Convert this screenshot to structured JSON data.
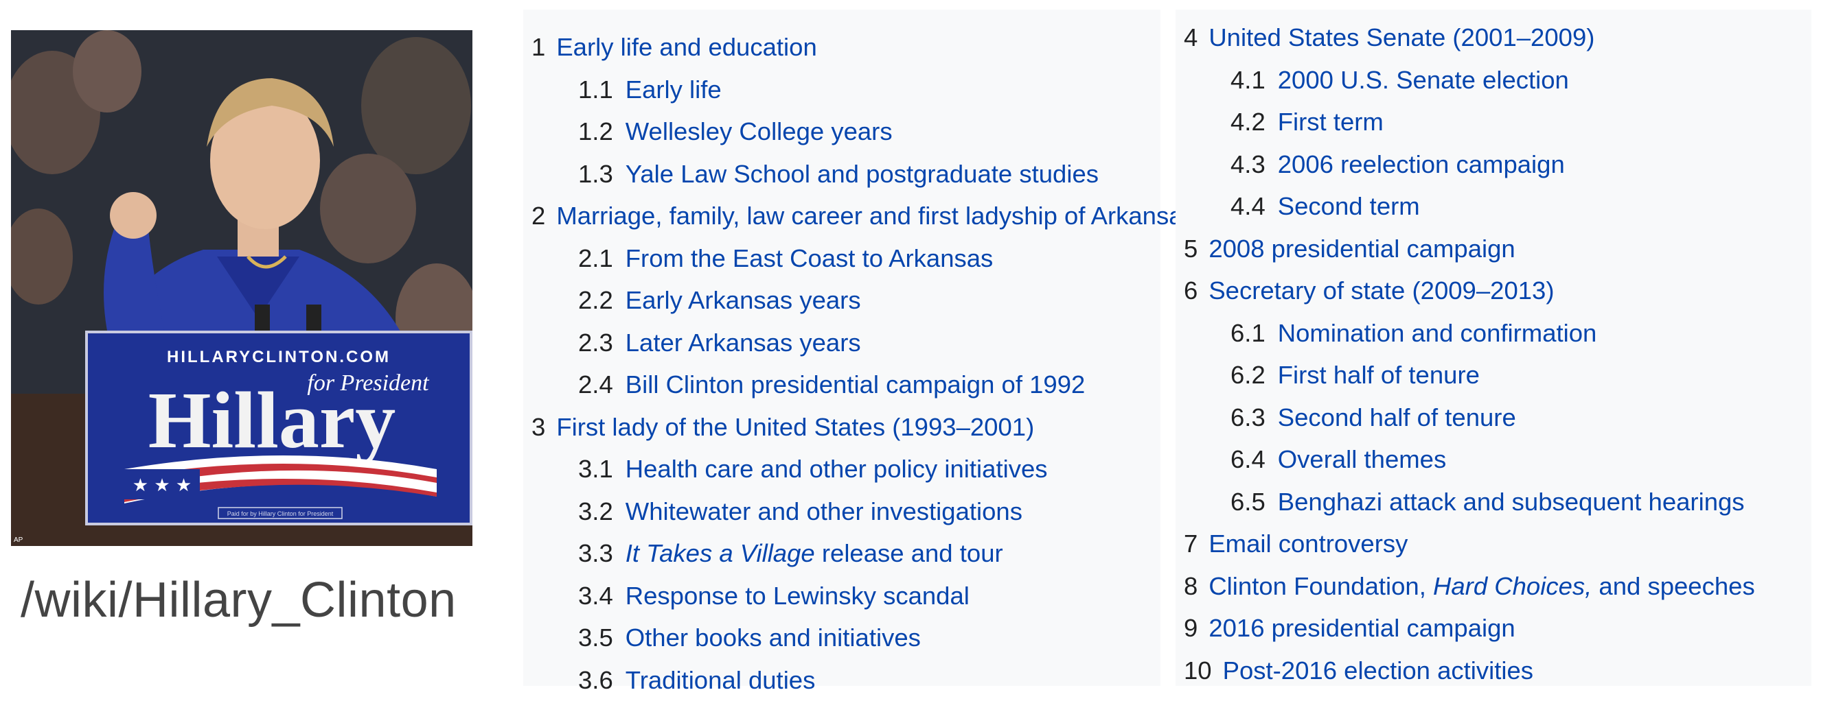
{
  "url_label": "/wiki/Hillary_Clinton",
  "photo": {
    "sign_site": "HILLARYCLINTON.COM",
    "sign_tagline": "for President",
    "sign_name": "Hillary",
    "sign_footer": "Paid for by Hillary Clinton for President",
    "credit": "AP"
  },
  "toc_left": [
    {
      "level": 1,
      "num": "1",
      "text": "Early life and education"
    },
    {
      "level": 2,
      "num": "1.1",
      "text": "Early life"
    },
    {
      "level": 2,
      "num": "1.2",
      "text": "Wellesley College years"
    },
    {
      "level": 2,
      "num": "1.3",
      "text": "Yale Law School and postgraduate studies"
    },
    {
      "level": 1,
      "num": "2",
      "text": "Marriage, family, law career and first ladyship of Arkansas"
    },
    {
      "level": 2,
      "num": "2.1",
      "text": "From the East Coast to Arkansas"
    },
    {
      "level": 2,
      "num": "2.2",
      "text": "Early Arkansas years"
    },
    {
      "level": 2,
      "num": "2.3",
      "text": "Later Arkansas years"
    },
    {
      "level": 2,
      "num": "2.4",
      "text": "Bill Clinton presidential campaign of 1992"
    },
    {
      "level": 1,
      "num": "3",
      "text": "First lady of the United States (1993–2001)"
    },
    {
      "level": 2,
      "num": "3.1",
      "text": "Health care and other policy initiatives"
    },
    {
      "level": 2,
      "num": "3.2",
      "text": "Whitewater and other investigations"
    },
    {
      "level": 2,
      "num": "3.3",
      "text_italic": "It Takes a Village",
      "text_after": " release and tour"
    },
    {
      "level": 2,
      "num": "3.4",
      "text": "Response to Lewinsky scandal"
    },
    {
      "level": 2,
      "num": "3.5",
      "text": "Other books and initiatives"
    },
    {
      "level": 2,
      "num": "3.6",
      "text": "Traditional duties"
    }
  ],
  "toc_right": [
    {
      "level": 1,
      "num": "4",
      "text": "United States Senate (2001–2009)"
    },
    {
      "level": 2,
      "num": "4.1",
      "text": "2000 U.S. Senate election"
    },
    {
      "level": 2,
      "num": "4.2",
      "text": "First term"
    },
    {
      "level": 2,
      "num": "4.3",
      "text": "2006 reelection campaign"
    },
    {
      "level": 2,
      "num": "4.4",
      "text": "Second term"
    },
    {
      "level": 1,
      "num": "5",
      "text": "2008 presidential campaign"
    },
    {
      "level": 1,
      "num": "6",
      "text": "Secretary of state (2009–2013)"
    },
    {
      "level": 2,
      "num": "6.1",
      "text": "Nomination and confirmation"
    },
    {
      "level": 2,
      "num": "6.2",
      "text": "First half of tenure"
    },
    {
      "level": 2,
      "num": "6.3",
      "text": "Second half of tenure"
    },
    {
      "level": 2,
      "num": "6.4",
      "text": "Overall themes"
    },
    {
      "level": 2,
      "num": "6.5",
      "text": "Benghazi attack and subsequent hearings"
    },
    {
      "level": 1,
      "num": "7",
      "text": "Email controversy"
    },
    {
      "level": 1,
      "num": "8",
      "text_before": "Clinton Foundation, ",
      "text_italic": "Hard Choices,",
      "text_after": " and speeches"
    },
    {
      "level": 1,
      "num": "9",
      "text": "2016 presidential campaign"
    },
    {
      "level": 1,
      "num": "10",
      "text": "Post-2016 election activities"
    }
  ]
}
